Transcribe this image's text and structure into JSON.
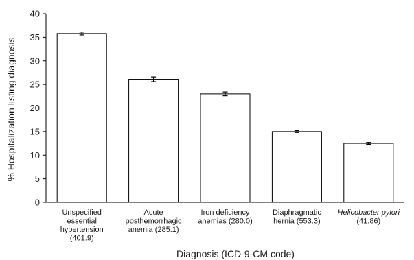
{
  "chart_data": {
    "type": "bar",
    "xlabel": "Diagnosis (ICD-9-CM code)",
    "ylabel": "% Hospitalization listing diagnosis",
    "ylim": [
      0,
      40
    ],
    "yticks": [
      "0",
      "5",
      "10",
      "15",
      "20",
      "25",
      "30",
      "35",
      "40"
    ],
    "grid": false,
    "categories": [
      {
        "lines": [
          "Unspecified",
          "essential",
          "hypertension",
          "(401.9)"
        ],
        "italic": false
      },
      {
        "lines": [
          "Acute",
          "posthemorrhagic",
          "anemia (285.1)"
        ],
        "italic": false
      },
      {
        "lines": [
          "Iron deficiency",
          "anemias (280.0)"
        ],
        "italic": false
      },
      {
        "lines": [
          "Diaphragmatic",
          "hernia (553.3)"
        ],
        "italic": false
      },
      {
        "lines": [
          "Helicobacter pylori",
          "(41.86)"
        ],
        "italic": true
      }
    ],
    "values": [
      35.8,
      26.1,
      23.0,
      15.0,
      12.5
    ],
    "error_low": [
      35.5,
      25.6,
      22.6,
      14.8,
      12.3
    ],
    "error_high": [
      36.1,
      26.6,
      23.4,
      15.2,
      12.7
    ]
  }
}
